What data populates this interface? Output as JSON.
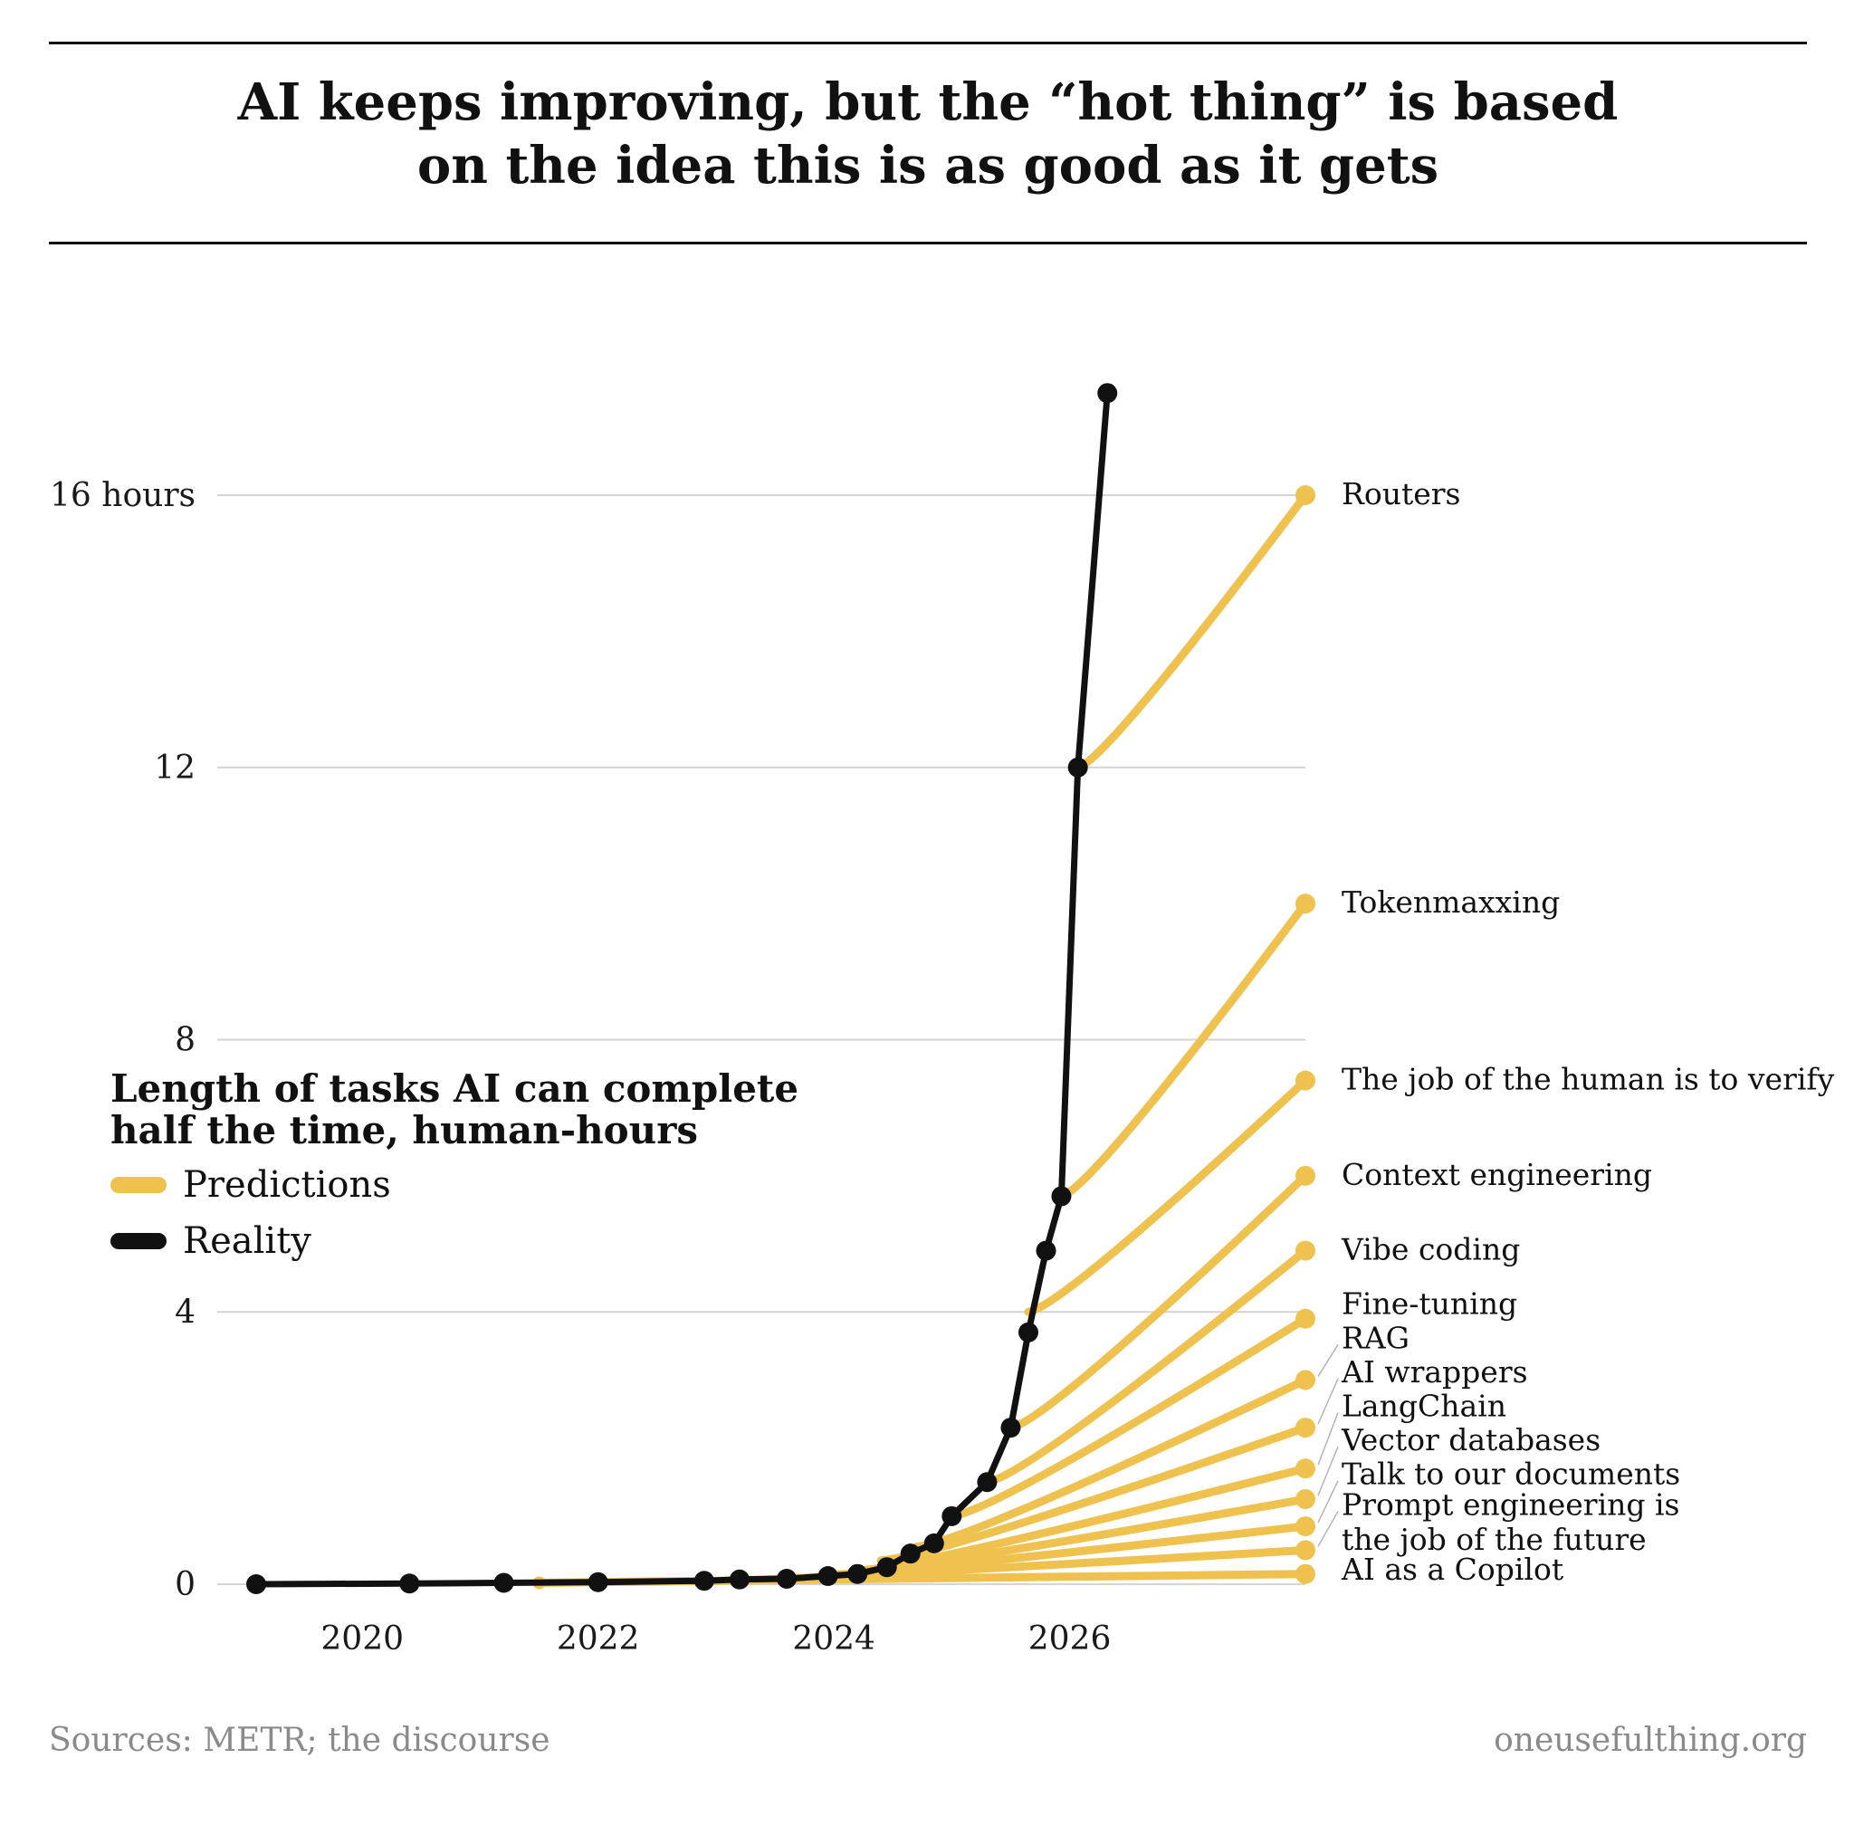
{
  "header": {
    "title_line1": "AI keeps improving, but the “hot thing” is based",
    "title_line2": "on the idea this is as good as it gets"
  },
  "legend": {
    "title_line1": "Length of tasks AI can complete",
    "title_line2": "half the time, human-hours",
    "items": [
      {
        "label": "Predictions",
        "color": "#efc24f"
      },
      {
        "label": "Reality",
        "color": "#111111"
      }
    ]
  },
  "footer": {
    "source": "Sources: METR; the discourse",
    "site": "oneusefulthing.org"
  },
  "chart_data": {
    "type": "line",
    "xlim": [
      2018.9,
      2028.1
    ],
    "ylim": [
      0,
      16
    ],
    "x_ticks": [
      {
        "value": 2020,
        "label": "2020"
      },
      {
        "value": 2022,
        "label": "2022"
      },
      {
        "value": 2024,
        "label": "2024"
      },
      {
        "value": 2026,
        "label": "2026"
      }
    ],
    "y_ticks": [
      {
        "value": 0,
        "label": "0"
      },
      {
        "value": 4,
        "label": "4"
      },
      {
        "value": 8,
        "label": "8"
      },
      {
        "value": 12,
        "label": "12"
      },
      {
        "value": 16,
        "label": "16 hours"
      }
    ],
    "grid": true,
    "colors": {
      "predictions": "#efc24f",
      "reality": "#111111",
      "grid": "#d4d4d4",
      "leader": "#b5b5b5"
    },
    "reality": {
      "name": "Reality",
      "points": [
        [
          2019.1,
          0.0
        ],
        [
          2020.4,
          0.01
        ],
        [
          2021.2,
          0.02
        ],
        [
          2022.0,
          0.03
        ],
        [
          2022.9,
          0.05
        ],
        [
          2023.2,
          0.07
        ],
        [
          2023.6,
          0.08
        ],
        [
          2023.95,
          0.12
        ],
        [
          2024.2,
          0.15
        ],
        [
          2024.45,
          0.25
        ],
        [
          2024.65,
          0.45
        ],
        [
          2024.85,
          0.6
        ],
        [
          2025.0,
          1.0
        ],
        [
          2025.3,
          1.5
        ],
        [
          2025.5,
          2.3
        ],
        [
          2025.65,
          3.7
        ],
        [
          2025.8,
          4.9
        ],
        [
          2025.93,
          5.7
        ],
        [
          2026.07,
          12.0
        ],
        [
          2026.32,
          17.5
        ]
      ]
    },
    "predictions": [
      {
        "label": "Routers",
        "start": [
          2026.07,
          12.0
        ],
        "end": [
          2028.0,
          16.0
        ]
      },
      {
        "label": "Tokenmaxxing",
        "start": [
          2025.93,
          5.7
        ],
        "end": [
          2028.0,
          10.0
        ]
      },
      {
        "label": "The job of the human is to verify",
        "start": [
          2025.65,
          4.0
        ],
        "end": [
          2028.0,
          7.4
        ]
      },
      {
        "label": "Context engineering",
        "start": [
          2025.5,
          2.3
        ],
        "end": [
          2028.0,
          6.0
        ]
      },
      {
        "label": "Vibe coding",
        "start": [
          2025.3,
          1.5
        ],
        "end": [
          2028.0,
          4.9
        ]
      },
      {
        "label": "Fine-tuning",
        "start": [
          2025.0,
          1.0
        ],
        "end": [
          2028.0,
          3.9
        ]
      },
      {
        "label": "RAG",
        "start": [
          2024.7,
          0.55
        ],
        "end": [
          2028.0,
          3.0
        ]
      },
      {
        "label": "AI wrappers",
        "start": [
          2024.4,
          0.35
        ],
        "end": [
          2028.0,
          2.3
        ]
      },
      {
        "label": "LangChain",
        "start": [
          2024.2,
          0.2
        ],
        "end": [
          2028.0,
          1.7
        ]
      },
      {
        "label": "Vector databases",
        "start": [
          2024.0,
          0.14
        ],
        "end": [
          2028.0,
          1.25
        ]
      },
      {
        "label": "Talk to our documents",
        "start": [
          2023.6,
          0.08
        ],
        "end": [
          2028.0,
          0.85
        ]
      },
      {
        "label": "Prompt engineering is the job of the future",
        "start": [
          2023.2,
          0.06
        ],
        "end": [
          2028.0,
          0.5
        ]
      },
      {
        "label": "AI as a Copilot",
        "start": [
          2021.5,
          0.02
        ],
        "end": [
          2028.0,
          0.15
        ]
      }
    ],
    "label_lines": [
      {
        "text": "Routers",
        "value": 16.0
      },
      {
        "text": "Tokenmaxxing",
        "value": 10.0
      },
      {
        "text": "The job of the human is to verify",
        "value": 7.4
      },
      {
        "text": "Context engineering",
        "value": 6.0
      },
      {
        "text": "Vibe coding",
        "value": 4.9
      },
      {
        "text": "Fine-tuning",
        "value": 4.1
      },
      {
        "text": "RAG",
        "value": 3.6
      },
      {
        "text": "AI wrappers",
        "value": 3.1
      },
      {
        "text": "LangChain",
        "value": 2.6
      },
      {
        "text": "Vector databases",
        "value": 2.1
      },
      {
        "text": "Talk to our documents",
        "value": 1.6
      },
      {
        "text": "Prompt engineering is",
        "value": 1.15
      },
      {
        "text": "the job of the future",
        "value": 0.64
      },
      {
        "text": "AI as a Copilot",
        "value": 0.2
      }
    ],
    "leader_lines": [
      {
        "from": 3.6,
        "to": 3.0
      },
      {
        "from": 3.1,
        "to": 2.3
      },
      {
        "from": 2.6,
        "to": 1.7
      },
      {
        "from": 2.1,
        "to": 1.25
      },
      {
        "from": 1.6,
        "to": 0.85
      },
      {
        "from": 1.15,
        "to": 0.5
      }
    ]
  }
}
